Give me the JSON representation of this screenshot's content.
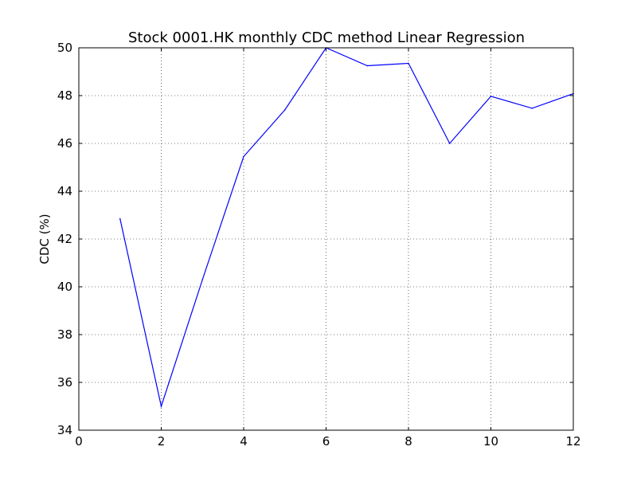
{
  "chart_data": {
    "type": "line",
    "title": "Stock 0001.HK monthly CDC method Linear Regression",
    "xlabel": "",
    "ylabel": "CDC (%)",
    "xlim": [
      0,
      12
    ],
    "ylim": [
      34,
      50
    ],
    "x_ticks": [
      "0",
      "2",
      "4",
      "6",
      "8",
      "10",
      "12"
    ],
    "y_ticks": [
      "34",
      "36",
      "38",
      "40",
      "42",
      "44",
      "46",
      "48",
      "50"
    ],
    "grid": true,
    "grid_style": "dotted",
    "series": [
      {
        "color": "#0000ff",
        "x": [
          1,
          2,
          3,
          4,
          5,
          6,
          7,
          8,
          9,
          10,
          11,
          12
        ],
        "y": [
          42.85,
          35.0,
          40.3,
          45.45,
          47.4,
          50.0,
          49.25,
          49.35,
          46.0,
          47.97,
          47.47,
          48.08
        ]
      }
    ]
  }
}
